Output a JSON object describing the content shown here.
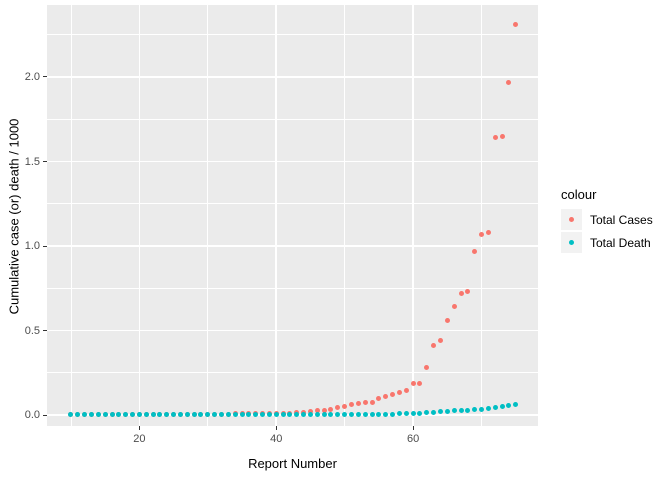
{
  "chart_data": {
    "type": "scatter",
    "title": "",
    "xlabel": "Report Number",
    "ylabel": "Cumulative case (or) death / 1000",
    "legend_title": "colour",
    "legend_position": "right",
    "grid": true,
    "xlim": [
      6.5,
      78.25
    ],
    "ylim": [
      -0.065,
      2.426
    ],
    "x_major_ticks": [
      20,
      40,
      60
    ],
    "x_tick_labels": [
      "20",
      "40",
      "60"
    ],
    "x_minor_ticks": [
      10,
      30,
      50,
      70
    ],
    "y_major_ticks": [
      0.0,
      0.5,
      1.0,
      1.5,
      2.0
    ],
    "y_tick_labels": [
      "0.0",
      "0.5",
      "1.0",
      "1.5",
      "2.0"
    ],
    "y_minor_ticks": [
      0.25,
      0.75,
      1.25,
      1.75,
      2.25
    ],
    "x": [
      10,
      11,
      12,
      13,
      14,
      15,
      16,
      17,
      18,
      19,
      20,
      21,
      22,
      23,
      24,
      25,
      26,
      27,
      28,
      29,
      30,
      31,
      32,
      33,
      34,
      35,
      36,
      37,
      38,
      39,
      40,
      41,
      42,
      43,
      44,
      45,
      46,
      47,
      48,
      49,
      50,
      51,
      52,
      53,
      54,
      55,
      56,
      57,
      58,
      59,
      60,
      61,
      62,
      63,
      64,
      65,
      66,
      67,
      68,
      69,
      70,
      71,
      72,
      73,
      74,
      75
    ],
    "series": [
      {
        "name": "Total Cases",
        "color": "#F8766D",
        "values": [
          0.0006,
          0.0007,
          0.0008,
          0.0008,
          0.0009,
          0.001,
          0.001,
          0.0011,
          0.0012,
          0.0014,
          0.0017,
          0.002,
          0.0024,
          0.0028,
          0.003,
          0.0032,
          0.0035,
          0.0037,
          0.004,
          0.0043,
          0.0045,
          0.005,
          0.0055,
          0.006,
          0.0065,
          0.007,
          0.0075,
          0.008,
          0.0085,
          0.009,
          0.0095,
          0.0105,
          0.0115,
          0.0125,
          0.014,
          0.018,
          0.024,
          0.029,
          0.031,
          0.043,
          0.05,
          0.061,
          0.067,
          0.073,
          0.077,
          0.097,
          0.108,
          0.122,
          0.136,
          0.148,
          0.187,
          0.188,
          0.28,
          0.41,
          0.44,
          0.56,
          0.64,
          0.72,
          0.73,
          0.97,
          1.07,
          1.08,
          1.64,
          1.65,
          1.97,
          2.31
        ]
      },
      {
        "name": "Total Death",
        "color": "#00BFC4",
        "values": [
          0.0002,
          0.0002,
          0.0002,
          0.0002,
          0.0002,
          0.0002,
          0.0002,
          0.0002,
          0.0002,
          0.0002,
          0.0003,
          0.0003,
          0.0003,
          0.0003,
          0.0003,
          0.0004,
          0.0004,
          0.0004,
          0.0004,
          0.0004,
          0.0005,
          0.0005,
          0.0005,
          0.0005,
          0.0005,
          0.0007,
          0.0007,
          0.0007,
          0.0007,
          0.0007,
          0.001,
          0.001,
          0.001,
          0.001,
          0.001,
          0.0012,
          0.0014,
          0.0016,
          0.0018,
          0.002,
          0.0023,
          0.0026,
          0.003,
          0.0034,
          0.0038,
          0.0043,
          0.005,
          0.006,
          0.007,
          0.008,
          0.009,
          0.011,
          0.013,
          0.015,
          0.018,
          0.021,
          0.024,
          0.027,
          0.029,
          0.03,
          0.034,
          0.039,
          0.045,
          0.049,
          0.056,
          0.062
        ]
      }
    ],
    "colors": {
      "panel_bg": "#EBEBEB",
      "grid": "#FFFFFF",
      "tick_mark": "#333333",
      "tick_label": "#4D4D4D",
      "legend_key_bg": "#F2F2F2"
    }
  },
  "legend": {
    "title": "colour",
    "items": [
      {
        "label": "Total Cases",
        "color": "#F8766D"
      },
      {
        "label": "Total Death",
        "color": "#00BFC4"
      }
    ]
  },
  "axes": {
    "x_title": "Report Number",
    "y_title": "Cumulative case (or) death / 1000"
  }
}
